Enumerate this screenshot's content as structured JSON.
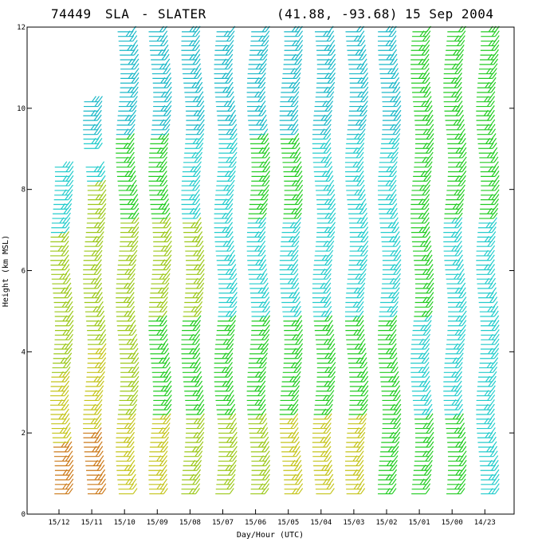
{
  "header": {
    "station_id": "74449",
    "station_code": "SLA",
    "separator": "-",
    "station_name": "SLATER",
    "coords": "(41.88, -93.68)",
    "date": "15 Sep 2004"
  },
  "chart_data": {
    "type": "wind-barb profile",
    "xlabel": "Day/Hour (UTC)",
    "ylabel": "Height (km MSL)",
    "ylim": [
      0,
      12
    ],
    "y_ticks": [
      0,
      2,
      4,
      6,
      8,
      10,
      12
    ],
    "grid": false,
    "categories": [
      "15/12",
      "15/11",
      "15/10",
      "15/09",
      "15/08",
      "15/07",
      "15/06",
      "15/05",
      "15/04",
      "15/03",
      "15/02",
      "15/01",
      "15/00",
      "14/23"
    ],
    "speed_colors": [
      "#cc7a1a",
      "#c4c41a",
      "#9cc81a",
      "#22cc22",
      "#22cccc",
      "#1a8cc8"
    ],
    "profiles": [
      {
        "time": "15/12",
        "top_km": 8.6,
        "colors": [
          "#cc7a1a",
          "#c4c41a",
          "#9cc81a",
          "#9cc81a",
          "#22cccc"
        ],
        "gap_km": [
          8.6,
          9.0
        ]
      },
      {
        "time": "15/11",
        "top_km": 10.2,
        "colors": [
          "#cc7a1a",
          "#c4c41a",
          "#9cc81a",
          "#9cc81a",
          "#22cccc"
        ],
        "gap_km": [
          8.6,
          8.9
        ]
      },
      {
        "time": "15/10",
        "top_km": 12.0,
        "colors": [
          "#c4c41a",
          "#9cc81a",
          "#9cc81a",
          "#22cc22",
          "#22cccc"
        ]
      },
      {
        "time": "15/09",
        "top_km": 12.0,
        "colors": [
          "#c4c41a",
          "#22cc22",
          "#9cc81a",
          "#22cc22",
          "#22cccc"
        ]
      },
      {
        "time": "15/08",
        "top_km": 12.0,
        "colors": [
          "#9cc81a",
          "#22cc22",
          "#9cc81a",
          "#22cccc",
          "#22cccc"
        ]
      },
      {
        "time": "15/07",
        "top_km": 12.0,
        "colors": [
          "#9cc81a",
          "#22cc22",
          "#22cccc",
          "#22cccc",
          "#22cccc"
        ]
      },
      {
        "time": "15/06",
        "top_km": 12.0,
        "colors": [
          "#9cc81a",
          "#22cc22",
          "#22cccc",
          "#22cc22",
          "#22cccc"
        ]
      },
      {
        "time": "15/05",
        "top_km": 12.0,
        "colors": [
          "#c4c41a",
          "#22cc22",
          "#22cccc",
          "#22cc22",
          "#22cccc"
        ]
      },
      {
        "time": "15/04",
        "top_km": 12.0,
        "colors": [
          "#c4c41a",
          "#22cc22",
          "#22cccc",
          "#22cccc",
          "#22cccc"
        ]
      },
      {
        "time": "15/03",
        "top_km": 12.0,
        "colors": [
          "#c4c41a",
          "#22cc22",
          "#22cccc",
          "#22cccc",
          "#22cccc"
        ]
      },
      {
        "time": "15/02",
        "top_km": 12.0,
        "colors": [
          "#22cc22",
          "#22cc22",
          "#22cccc",
          "#22cccc",
          "#22cccc"
        ]
      },
      {
        "time": "15/01",
        "top_km": 12.0,
        "colors": [
          "#22cc22",
          "#22cccc",
          "#22cc22",
          "#22cc22",
          "#22cc22"
        ]
      },
      {
        "time": "15/00",
        "top_km": 12.0,
        "colors": [
          "#22cc22",
          "#22cccc",
          "#22cccc",
          "#22cc22",
          "#22cc22"
        ]
      },
      {
        "time": "14/23",
        "top_km": 12.0,
        "colors": [
          "#22cccc",
          "#22cccc",
          "#22cccc",
          "#22cc22",
          "#22cc22"
        ]
      }
    ]
  }
}
